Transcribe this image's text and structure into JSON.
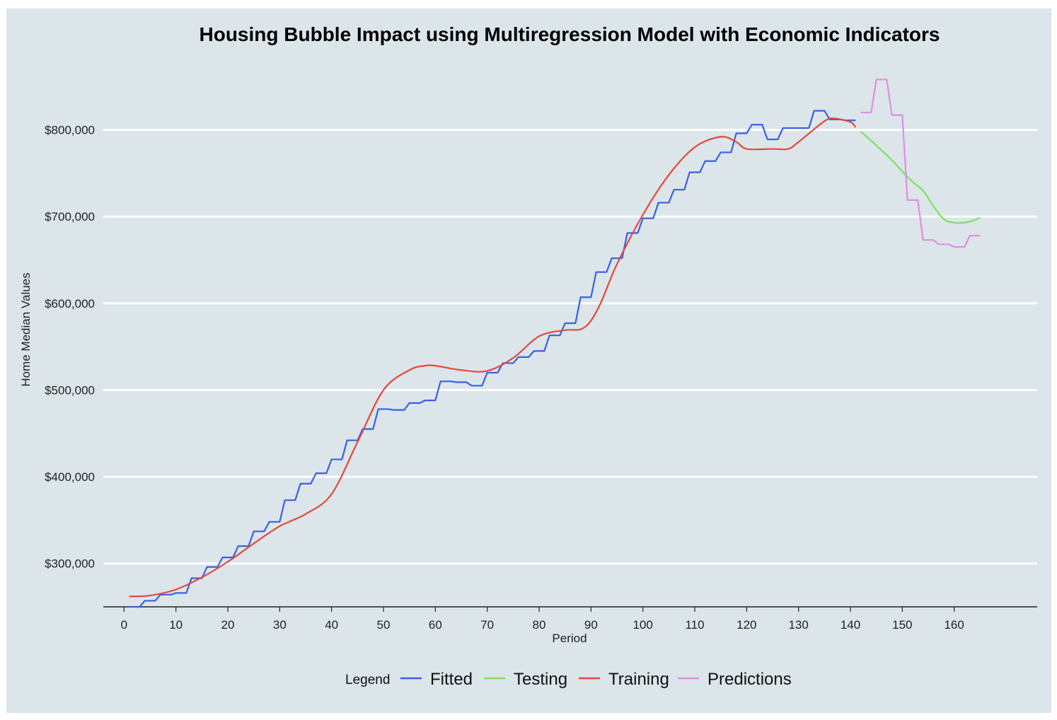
{
  "chart_data": {
    "type": "line",
    "title": "Housing Bubble Impact using Multiregression Model with Economic Indicators",
    "xlabel": "Period",
    "ylabel": "Home Median Values",
    "xlim": [
      -4,
      176
    ],
    "ylim": [
      250000,
      860000
    ],
    "x_ticks": [
      0,
      10,
      20,
      30,
      40,
      50,
      60,
      70,
      80,
      90,
      100,
      110,
      120,
      130,
      140,
      150,
      160
    ],
    "y_ticks": [
      {
        "value": 300000,
        "label": "$300,000"
      },
      {
        "value": 400000,
        "label": "$400,000"
      },
      {
        "value": 500000,
        "label": "$500,000"
      },
      {
        "value": 600000,
        "label": "$600,000"
      },
      {
        "value": 700000,
        "label": "$700,000"
      },
      {
        "value": 800000,
        "label": "$800,000"
      }
    ],
    "grid": "horizontal",
    "legend": {
      "title": "Legend",
      "position": "bottom"
    },
    "series": [
      {
        "name": "Fitted",
        "color": "#3a5fe6",
        "step": true,
        "x": [
          1,
          3,
          4,
          6,
          7,
          9,
          10,
          12,
          13,
          15,
          16,
          18,
          19,
          21,
          22,
          24,
          25,
          27,
          28,
          30,
          31,
          33,
          34,
          36,
          37,
          39,
          40,
          42,
          43,
          45,
          46,
          48,
          49,
          51,
          52,
          54,
          55,
          57,
          58,
          60,
          61,
          63,
          64,
          66,
          67,
          69,
          70,
          72,
          73,
          75,
          76,
          78,
          79,
          81,
          82,
          84,
          85,
          87,
          88,
          90,
          91,
          93,
          94,
          96,
          97,
          99,
          100,
          102,
          103,
          105,
          106,
          108,
          109,
          111,
          112,
          114,
          115,
          117,
          118,
          120,
          121,
          123,
          124,
          126,
          127,
          129,
          130,
          132,
          133,
          135,
          136,
          138,
          139,
          141
        ],
        "y": [
          250000,
          250000,
          257000,
          257000,
          264000,
          264000,
          266000,
          266000,
          283000,
          283000,
          296000,
          296000,
          307000,
          307000,
          320000,
          320000,
          337000,
          337000,
          348000,
          348000,
          373000,
          373000,
          392000,
          392000,
          404000,
          404000,
          420000,
          420000,
          442000,
          442000,
          455000,
          455000,
          478000,
          478000,
          477000,
          477000,
          485000,
          485000,
          488000,
          488000,
          510000,
          510000,
          509000,
          509000,
          505000,
          505000,
          520000,
          520000,
          531000,
          531000,
          538000,
          538000,
          545000,
          545000,
          563000,
          563000,
          577000,
          577000,
          607000,
          607000,
          636000,
          636000,
          652000,
          652000,
          681000,
          681000,
          698000,
          698000,
          716000,
          716000,
          731000,
          731000,
          751000,
          751000,
          764000,
          764000,
          774000,
          774000,
          796000,
          796000,
          806000,
          806000,
          789000,
          789000,
          802000,
          802000,
          802000,
          802000,
          822000,
          822000,
          812000,
          812000,
          811000,
          811000
        ]
      },
      {
        "name": "Testing",
        "color": "#7de05a",
        "step": false,
        "x": [
          142,
          145,
          148,
          150,
          152,
          154,
          156,
          158,
          160,
          162,
          164,
          165
        ],
        "y": [
          798000,
          782000,
          765000,
          752000,
          740000,
          730000,
          712000,
          697000,
          693000,
          693000,
          696000,
          699000
        ]
      },
      {
        "name": "Training",
        "color": "#e2493a",
        "step": false,
        "x": [
          1,
          5,
          10,
          15,
          20,
          25,
          30,
          35,
          40,
          45,
          50,
          55,
          58,
          60,
          65,
          70,
          75,
          80,
          85,
          88,
          90,
          92,
          95,
          100,
          105,
          110,
          115,
          118,
          120,
          125,
          128,
          130,
          135,
          137,
          140,
          141
        ],
        "y": [
          262000,
          263000,
          270000,
          284000,
          302000,
          323000,
          343000,
          357000,
          380000,
          440000,
          500000,
          523000,
          528000,
          528000,
          523000,
          522000,
          537000,
          562000,
          569000,
          570000,
          580000,
          602000,
          645000,
          702000,
          748000,
          780000,
          792000,
          786000,
          778000,
          778000,
          778000,
          786000,
          810000,
          813000,
          809000,
          803000
        ]
      },
      {
        "name": "Predictions",
        "color": "#dd8fe1",
        "step": true,
        "x": [
          142,
          144,
          145,
          147,
          148,
          150,
          151,
          153,
          154,
          156,
          157,
          159,
          160,
          162,
          163,
          165
        ],
        "y": [
          820000,
          820000,
          858000,
          858000,
          817000,
          817000,
          719000,
          719000,
          673000,
          673000,
          668000,
          668000,
          665000,
          665000,
          678000,
          678000
        ]
      }
    ]
  }
}
